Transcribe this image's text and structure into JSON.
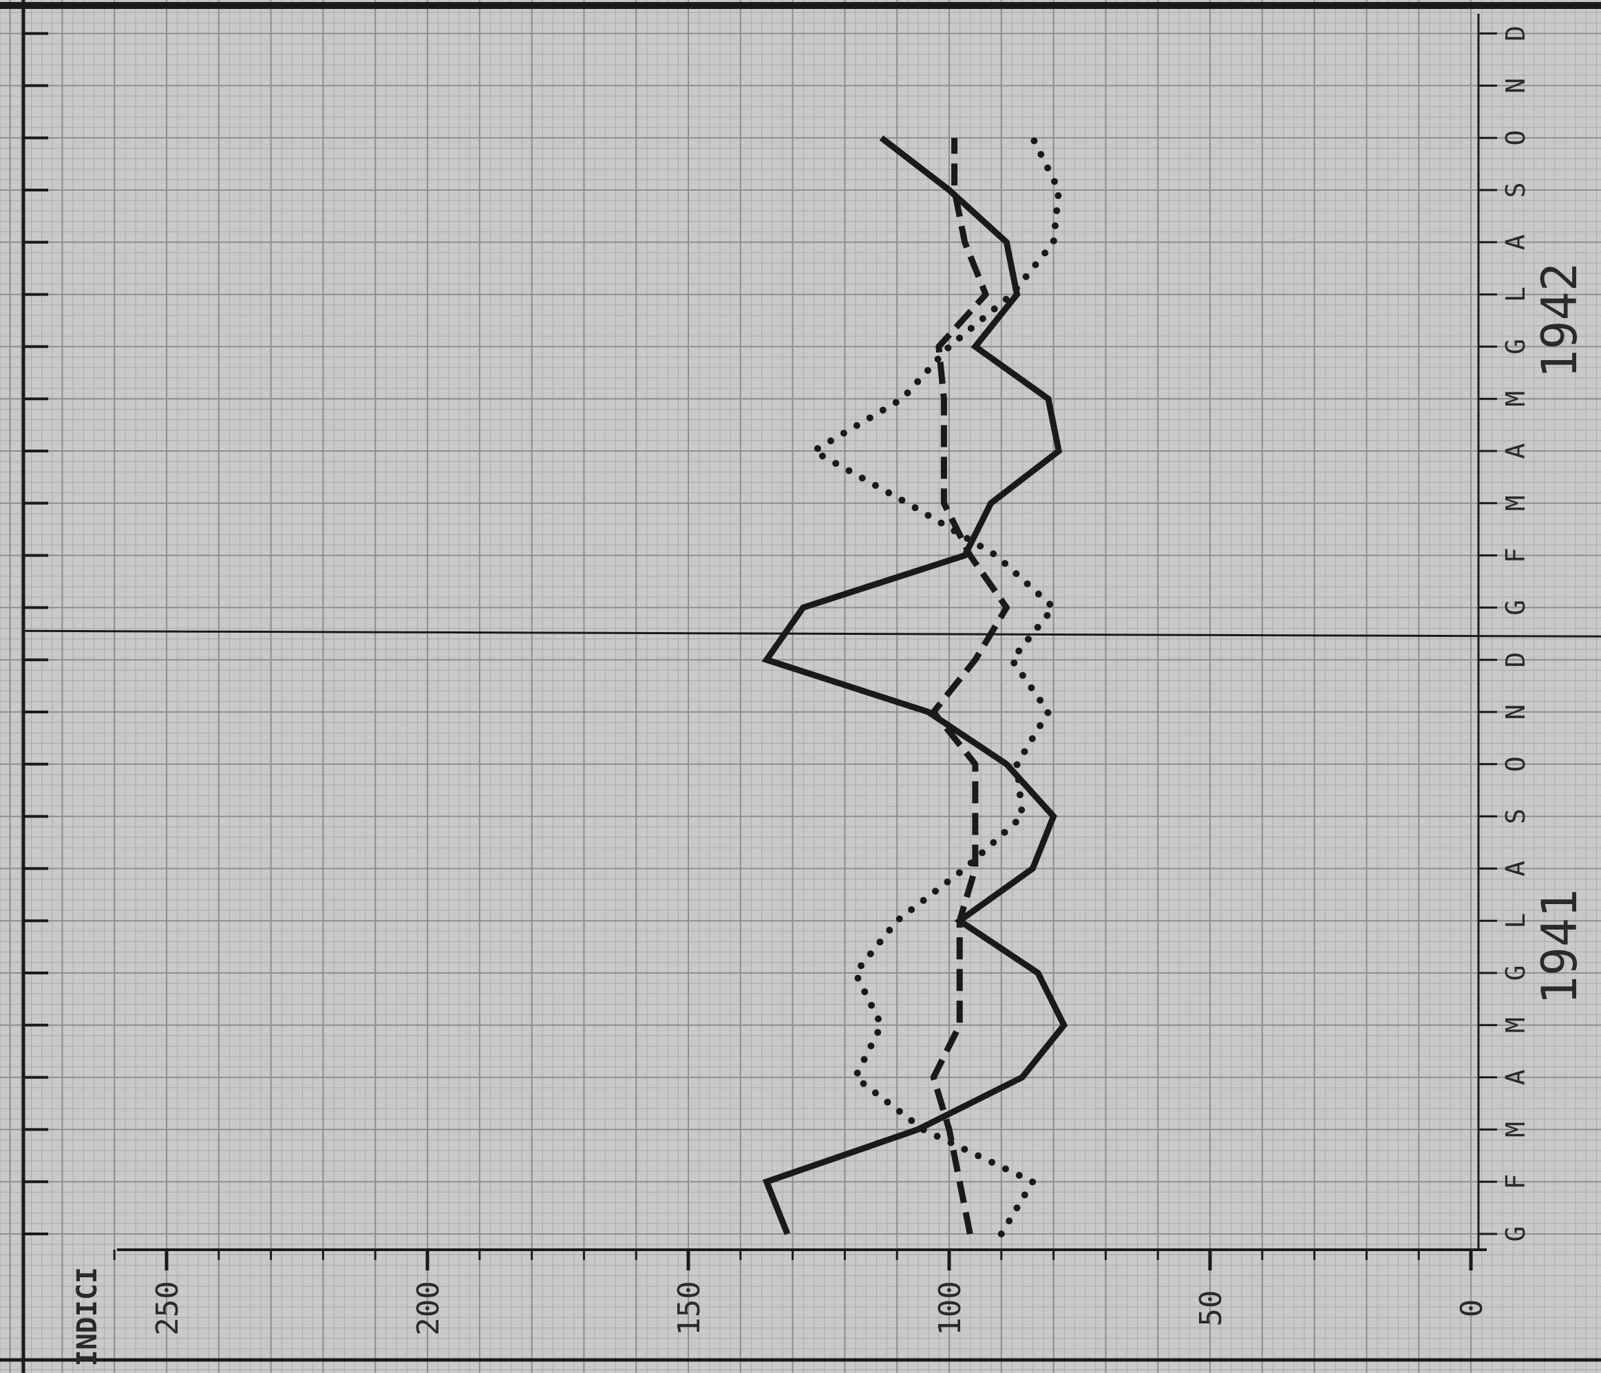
{
  "chart_data": {
    "type": "line",
    "title": "",
    "ylabel": "INDICI",
    "ylim": [
      0,
      260
    ],
    "y_ticks": [
      0,
      50,
      100,
      150,
      200,
      250
    ],
    "y_tick_labels": [
      "0",
      "50",
      "100",
      "150",
      "200",
      "250"
    ],
    "years": [
      "1941",
      "1942"
    ],
    "month_labels": [
      "G",
      "F",
      "M",
      "A",
      "M",
      "G",
      "L",
      "A",
      "S",
      "O",
      "N",
      "D",
      "G",
      "F",
      "M",
      "A",
      "M",
      "G",
      "L",
      "A",
      "S",
      "O",
      "N",
      "D"
    ],
    "grid": true,
    "series": [
      {
        "style": "solid",
        "values": [
          131,
          135,
          106,
          86,
          78,
          83,
          98,
          84,
          80,
          89,
          104,
          135,
          128,
          97,
          92,
          79,
          81,
          95,
          87,
          89,
          100,
          113
        ]
      },
      {
        "style": "dashed",
        "values": [
          96,
          98,
          100,
          103,
          98,
          98,
          98,
          95,
          95,
          95,
          103,
          95,
          89,
          96,
          101,
          101,
          101,
          102,
          93,
          97,
          99,
          99
        ]
      },
      {
        "style": "dotted",
        "values": [
          90,
          84,
          105,
          118,
          113,
          118,
          110,
          97,
          86,
          87,
          81,
          88,
          80,
          91,
          108,
          126,
          109,
          100,
          88,
          80,
          79,
          84
        ]
      }
    ]
  },
  "colors": {
    "paper": "#c9c9c9",
    "grid": "#a9a9a9",
    "ink": "#1a1a1a"
  }
}
